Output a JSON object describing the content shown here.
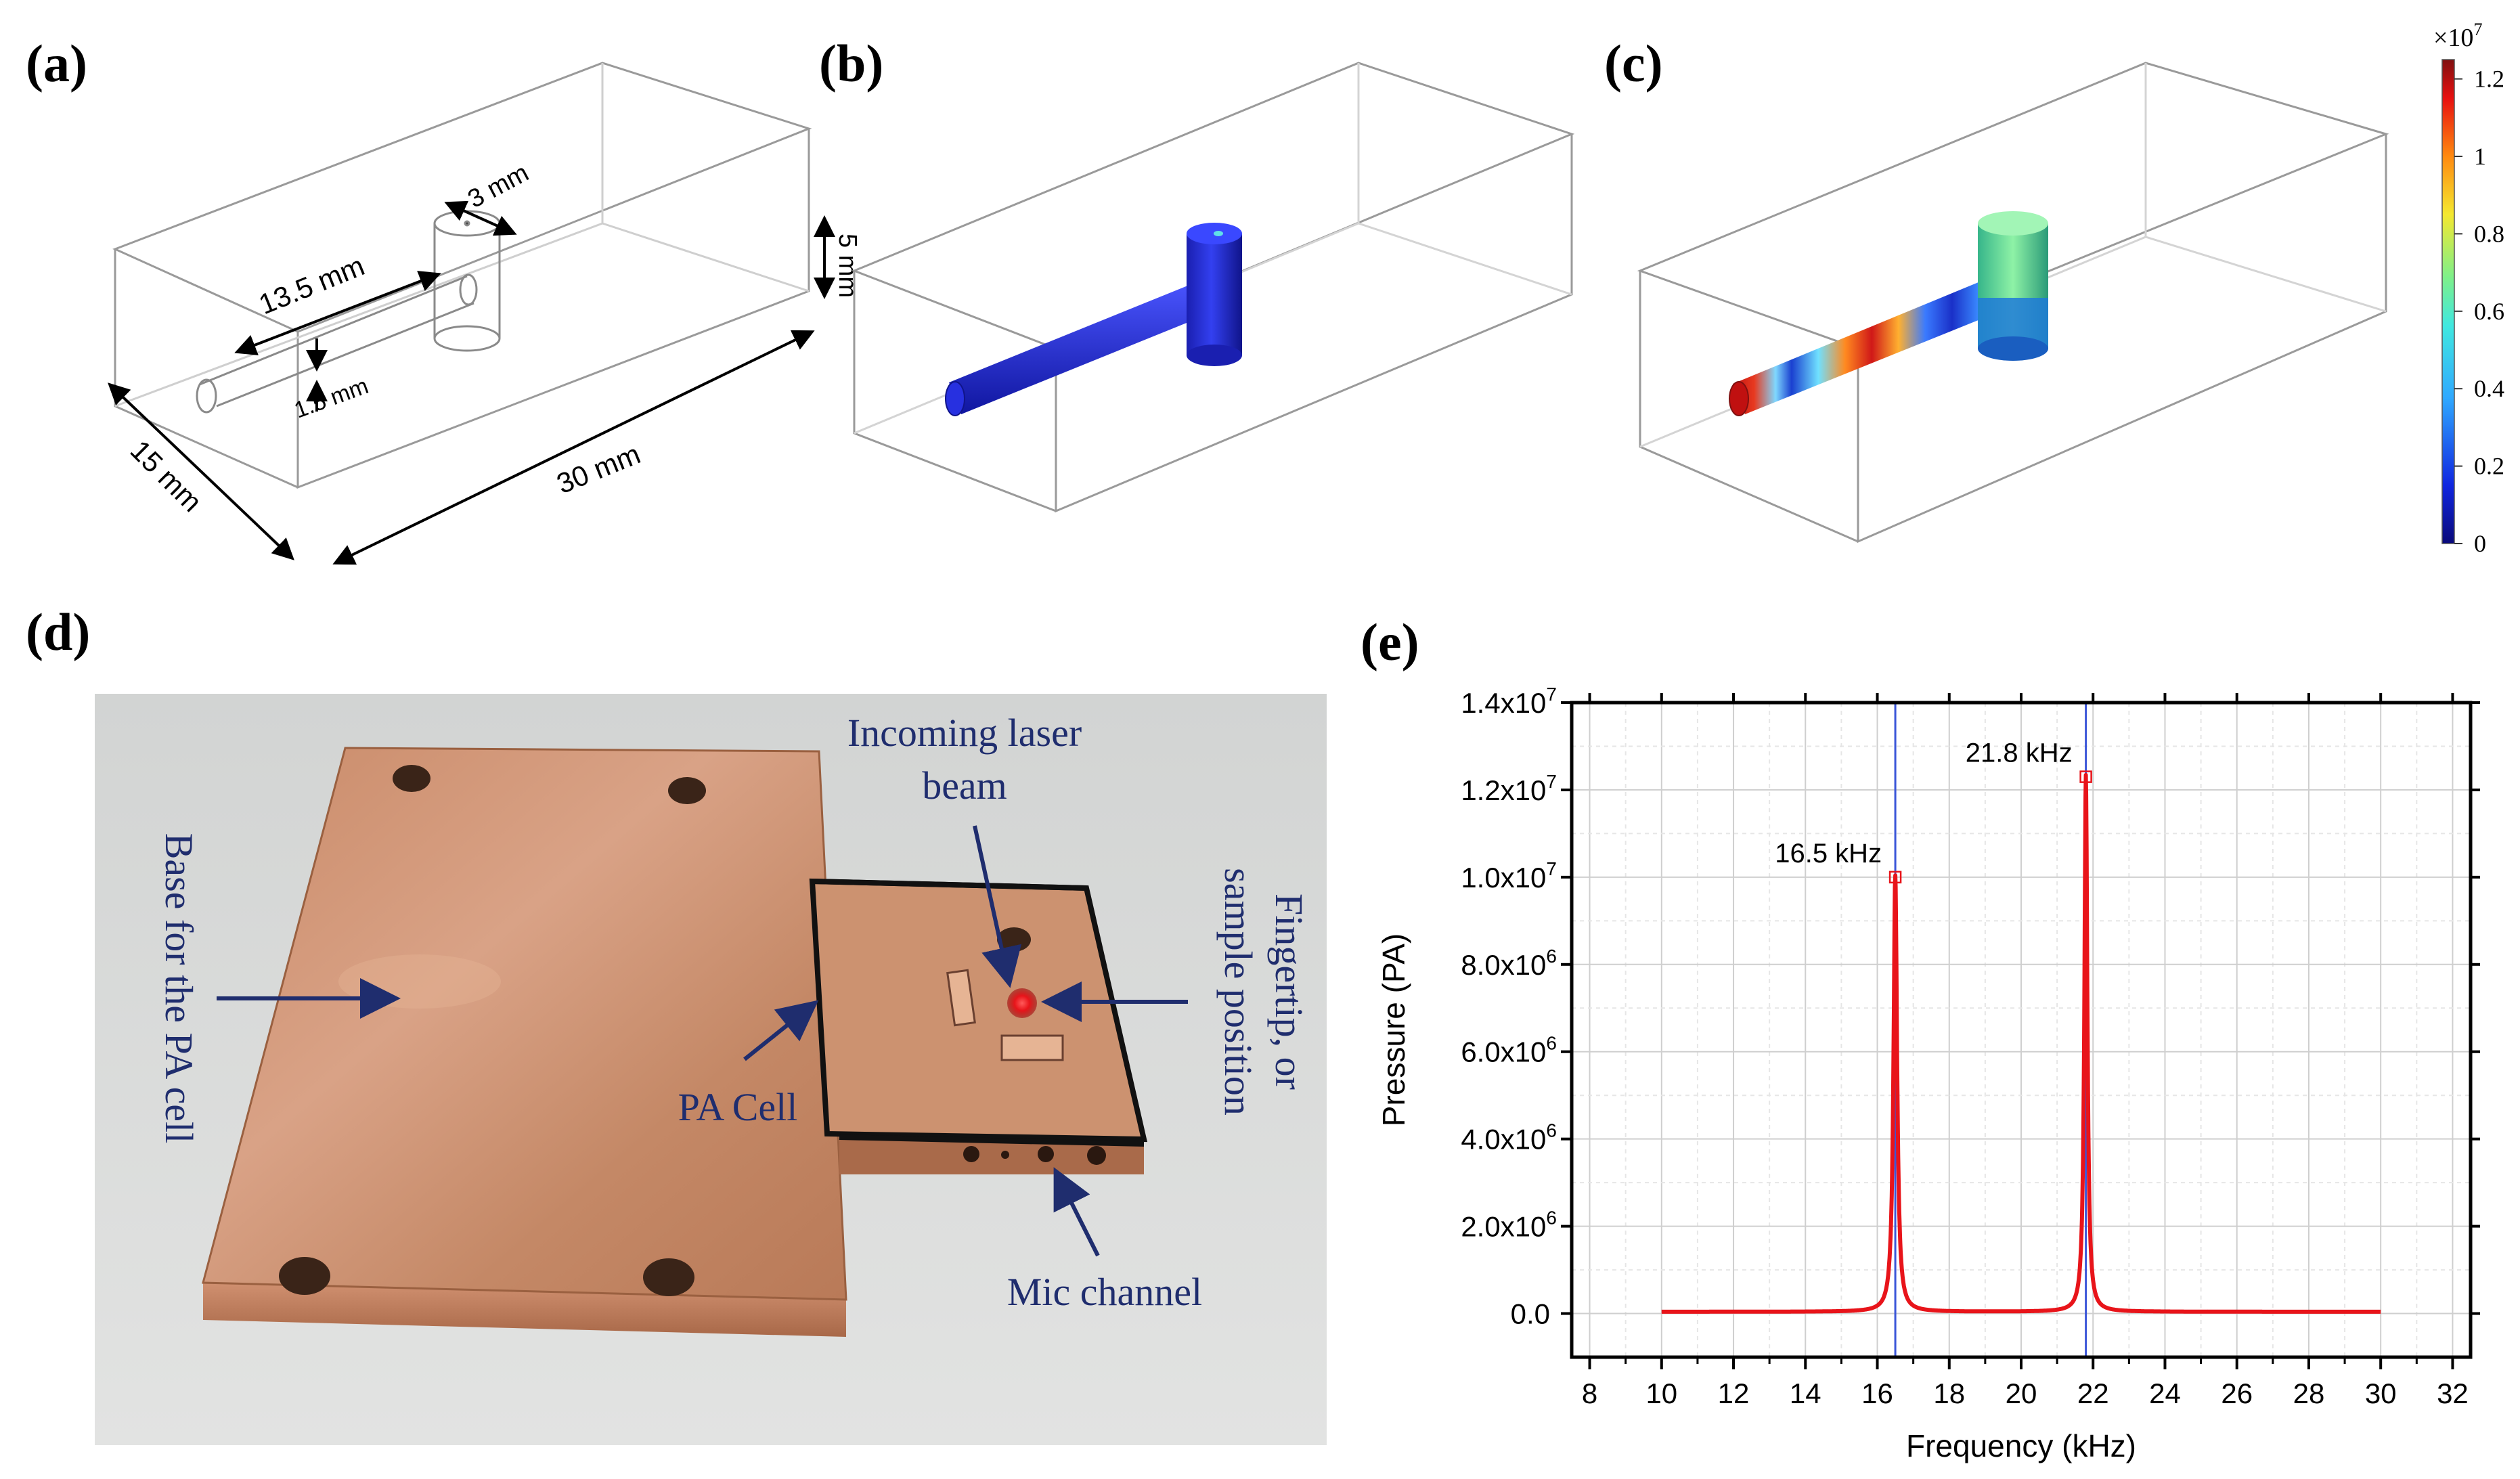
{
  "panels": {
    "a": {
      "label": "(a)",
      "dims": {
        "d_3mm": "3 mm",
        "d_5mm": "5 mm",
        "d_13_5mm": "13.5 mm",
        "d_1_5mm": "1.5 mm",
        "d_15mm": "15 mm",
        "d_30mm": "30 mm"
      }
    },
    "b": {
      "label": "(b)"
    },
    "c": {
      "label": "(c)"
    },
    "colorbar": {
      "multiplier": "×10",
      "exponent": "7",
      "ticks": [
        "1.2",
        "1",
        "0.8",
        "0.6",
        "0.4",
        "0.2",
        "0"
      ],
      "tick_values": [
        1.2,
        1.0,
        0.8,
        0.6,
        0.4,
        0.2,
        0.0
      ],
      "range": [
        0,
        1.25
      ]
    },
    "d": {
      "label": "(d)",
      "annotations": {
        "incoming": "Incoming laser",
        "beam": "beam",
        "base": "Base for the PA cell",
        "fingertip1": "Fingertip, or",
        "fingertip2": "sample position",
        "pacell": "PA Cell",
        "mic": "Mic channel"
      },
      "colors": {
        "copper": "#c98f6e",
        "laser": "#e8141a",
        "annotation": "#1f2d6e"
      }
    },
    "e": {
      "label": "(e)"
    }
  },
  "chart_data": {
    "type": "line",
    "title": "",
    "xlabel": "Frequency (kHz)",
    "ylabel": "Pressure (PA)",
    "xlim": [
      7.5,
      32.5
    ],
    "ylim": [
      -1000000,
      14000000
    ],
    "xticks": [
      8,
      10,
      12,
      14,
      16,
      18,
      20,
      22,
      24,
      26,
      28,
      30,
      32
    ],
    "yticks": [
      {
        "value": 0,
        "label": "0.0"
      },
      {
        "value": 2000000,
        "label": "2.0x10",
        "exp": "6"
      },
      {
        "value": 4000000,
        "label": "4.0x10",
        "exp": "6"
      },
      {
        "value": 6000000,
        "label": "6.0x10",
        "exp": "6"
      },
      {
        "value": 8000000,
        "label": "8.0x10",
        "exp": "6"
      },
      {
        "value": 10000000,
        "label": "1.0x10",
        "exp": "7"
      },
      {
        "value": 12000000,
        "label": "1.2x10",
        "exp": "7"
      },
      {
        "value": 14000000,
        "label": "1.4x10",
        "exp": "7"
      }
    ],
    "grid": true,
    "series": [
      {
        "name": "Pressure",
        "color": "#e8141a",
        "x_range": [
          10,
          30
        ],
        "baseline": 40000,
        "peaks": [
          {
            "f0": 16.5,
            "amp": 10000000,
            "hw": 0.06
          },
          {
            "f0": 21.8,
            "amp": 12300000,
            "hw": 0.05
          }
        ]
      }
    ],
    "vlines": [
      {
        "x": 16.5,
        "color": "#3a55d8"
      },
      {
        "x": 21.8,
        "color": "#3a55d8"
      }
    ],
    "markers": [
      {
        "x": 16.5,
        "y": 10000000
      },
      {
        "x": 21.8,
        "y": 12300000
      }
    ],
    "annotations": [
      {
        "text": "16.5 kHz",
        "x": 16.5,
        "y": 10000000
      },
      {
        "text": "21.8 kHz",
        "x": 21.8,
        "y": 12300000
      }
    ]
  }
}
